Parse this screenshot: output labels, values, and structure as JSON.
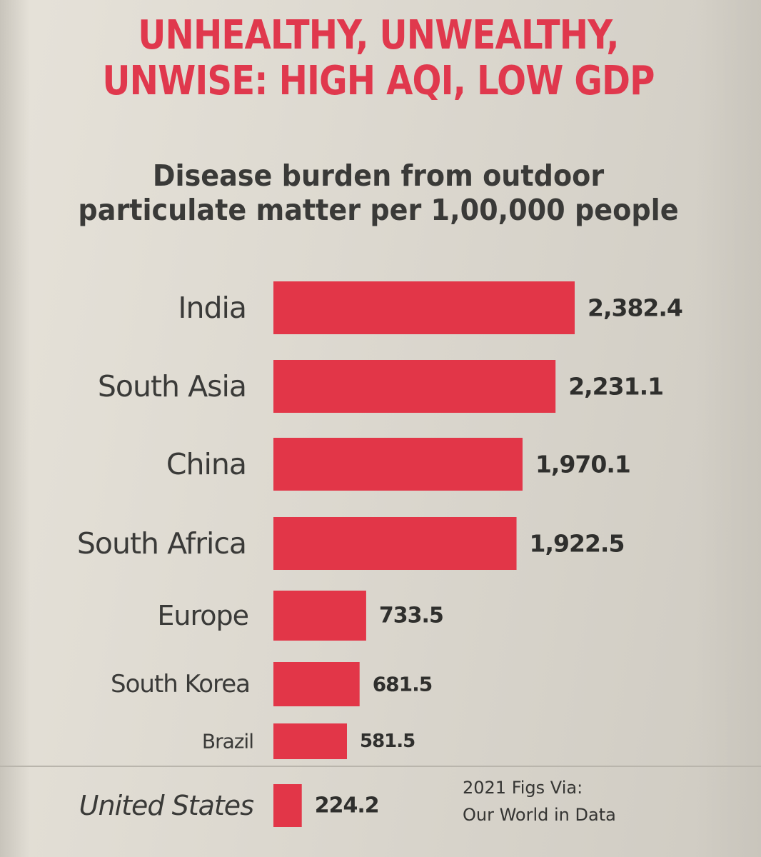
{
  "headline": {
    "line1": "UNHEALTHY, UNWEALTHY,",
    "line2": "UNWISE: HIGH AQI, LOW GDP"
  },
  "subtitle": {
    "line1": "Disease burden from outdoor",
    "line2": "particulate matter per 1,00,000 people"
  },
  "footnote": {
    "line1": "2021 Figs Via:",
    "line2": "Our World in Data"
  },
  "colors": {
    "accent": "#e0384d",
    "text": "#353533",
    "bar": "#e23648"
  },
  "chart_data": {
    "type": "bar",
    "orientation": "horizontal",
    "title": "UNHEALTHY, UNWEALTHY, UNWISE: HIGH AQI, LOW GDP",
    "subtitle": "Disease burden from outdoor particulate matter per 1,00,000 people",
    "categories": [
      "India",
      "South Asia",
      "China",
      "South Africa",
      "Europe",
      "South Korea",
      "Brazil",
      "United States"
    ],
    "values": [
      2382.4,
      2231.1,
      1970.1,
      1922.5,
      733.5,
      681.5,
      581.5,
      224.2
    ],
    "value_labels": [
      "2,382.4",
      "2,231.1",
      "1,970.1",
      "1,922.5",
      "733.5",
      "681.5",
      "581.5",
      "224.2"
    ],
    "xlabel": "",
    "ylabel": "",
    "xlim": [
      0,
      2382.4
    ],
    "grid": false,
    "legend": "none"
  }
}
